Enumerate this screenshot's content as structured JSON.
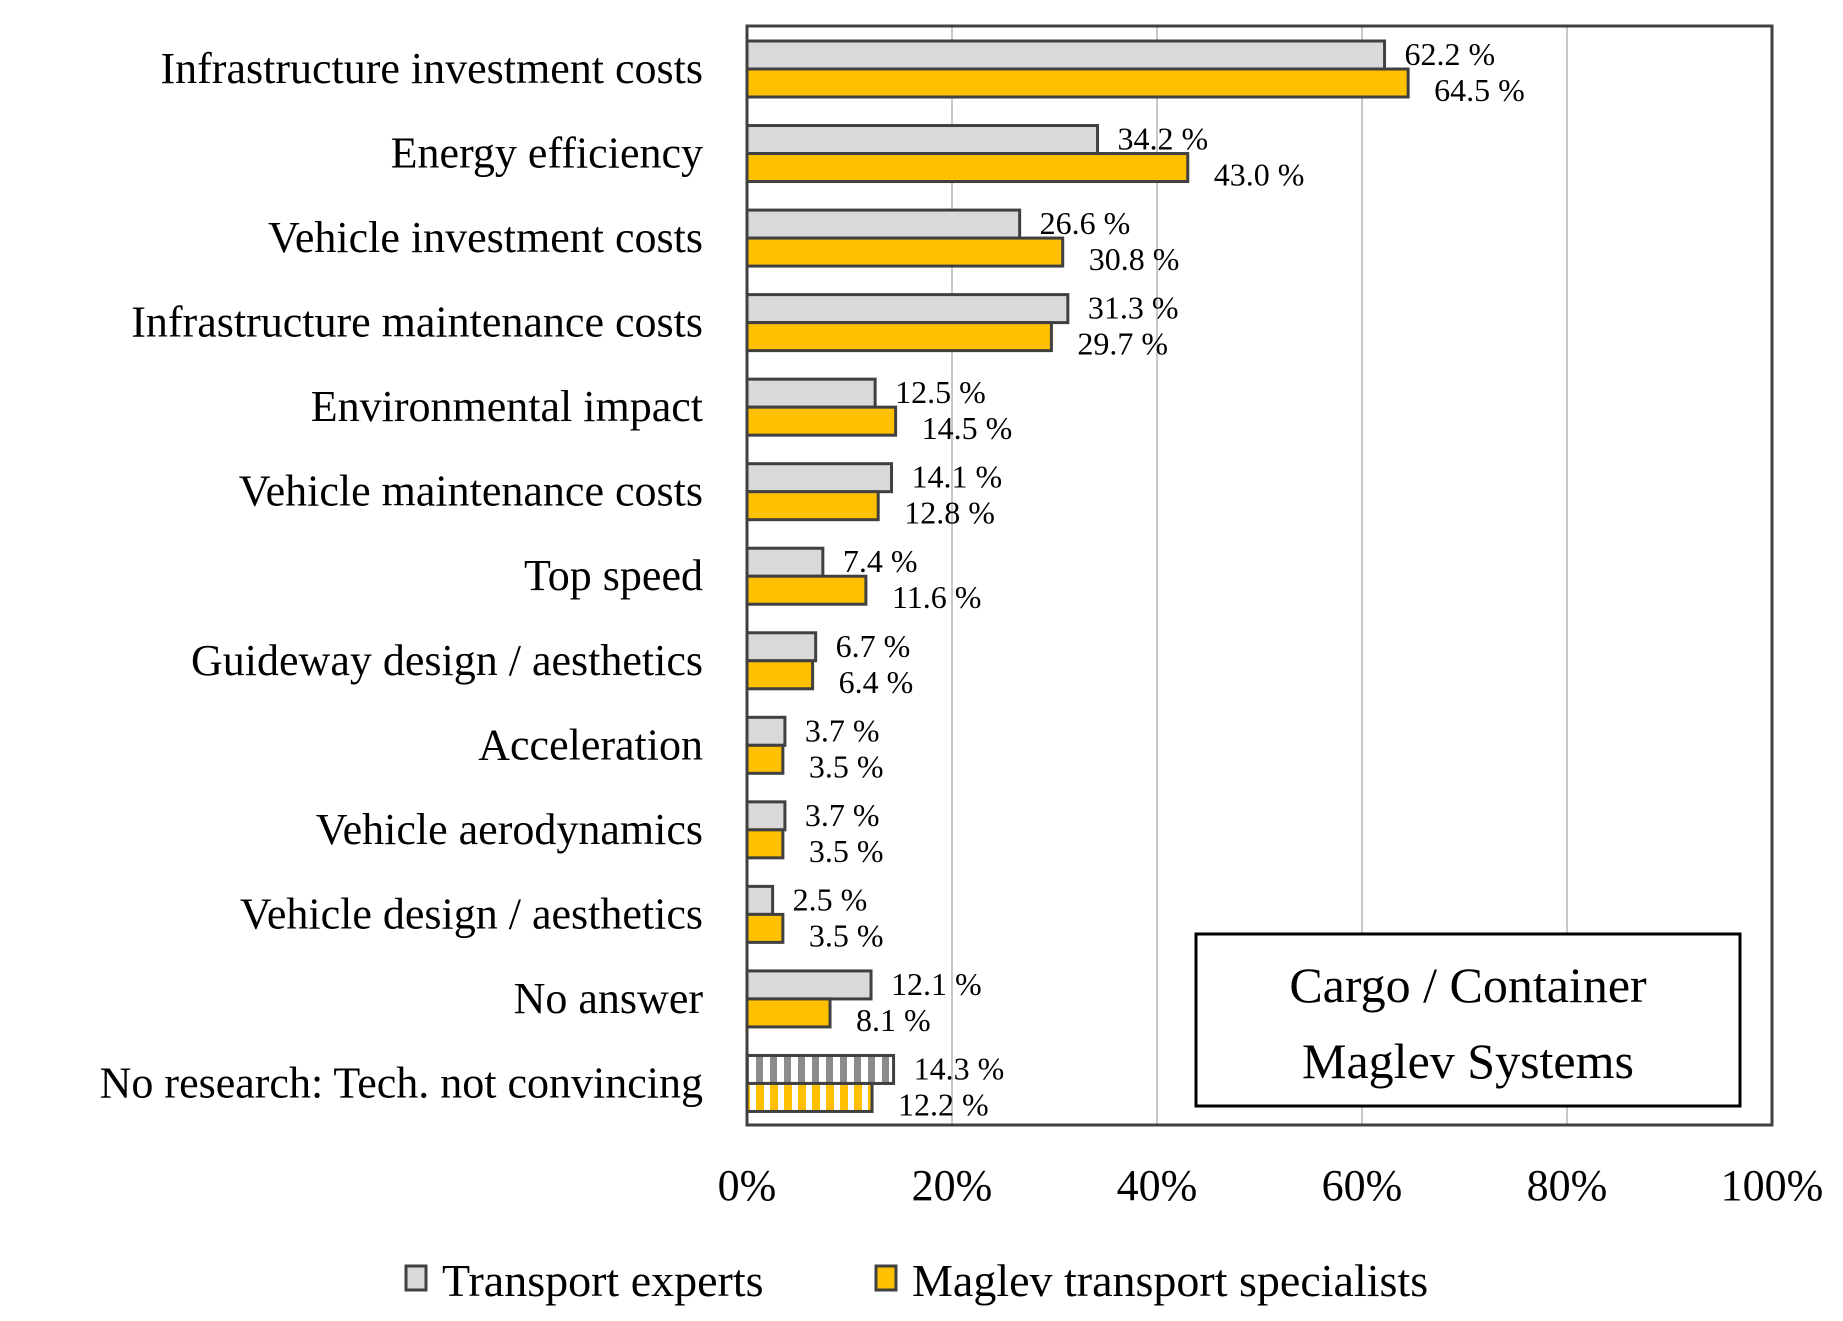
{
  "chart_data": {
    "type": "bar",
    "orientation": "horizontal",
    "title": "",
    "annotation": [
      "Cargo / Container",
      "Maglev Systems"
    ],
    "xlabel": "",
    "ylabel": "",
    "xlim": [
      0,
      100
    ],
    "x_ticks": [
      "0%",
      "20%",
      "40%",
      "60%",
      "80%",
      "100%"
    ],
    "x_tick_values": [
      0,
      20,
      40,
      60,
      80,
      100
    ],
    "grid": "vertical",
    "legend_position": "bottom-center",
    "categories": [
      "Infrastructure investment costs",
      "Energy efficiency",
      "Vehicle investment costs",
      "Infrastructure maintenance costs",
      "Environmental impact",
      "Vehicle maintenance costs",
      "Top speed",
      "Guideway design / aesthetics",
      "Acceleration",
      "Vehicle aerodynamics",
      "Vehicle design / aesthetics",
      "No answer",
      "No research: Tech. not convincing"
    ],
    "hatched_categories": [
      "No research: Tech. not convincing"
    ],
    "series": [
      {
        "name": "Transport experts",
        "color": "#d9d9d9",
        "border": "#404040",
        "values": [
          62.2,
          34.2,
          26.6,
          31.3,
          12.5,
          14.1,
          7.4,
          6.7,
          3.7,
          3.7,
          2.5,
          12.1,
          14.3
        ],
        "labels": [
          "62.2 %",
          "34.2 %",
          "26.6 %",
          "31.3 %",
          "12.5 %",
          "14.1 %",
          "7.4 %",
          "6.7 %",
          "3.7 %",
          "3.7 %",
          "2.5 %",
          "12.1 %",
          "14.3 %"
        ]
      },
      {
        "name": "Maglev transport specialists",
        "color": "#ffc000",
        "border": "#404040",
        "values": [
          64.5,
          43.0,
          30.8,
          29.7,
          14.5,
          12.8,
          11.6,
          6.4,
          3.5,
          3.5,
          3.5,
          8.1,
          12.2
        ],
        "labels": [
          "64.5 %",
          "43.0 %",
          "30.8 %",
          "29.7 %",
          "14.5 %",
          "12.8 %",
          "11.6 %",
          "6.4 %",
          "3.5 %",
          "3.5 %",
          "3.5 %",
          "8.1 %",
          "12.2 %"
        ]
      }
    ]
  },
  "legend": {
    "items": [
      {
        "label": "Transport experts",
        "color": "#d9d9d9"
      },
      {
        "label": "Maglev transport specialists",
        "color": "#ffc000"
      }
    ]
  },
  "annotation_box": {
    "line1": "Cargo / Container",
    "line2": "Maglev Systems"
  }
}
